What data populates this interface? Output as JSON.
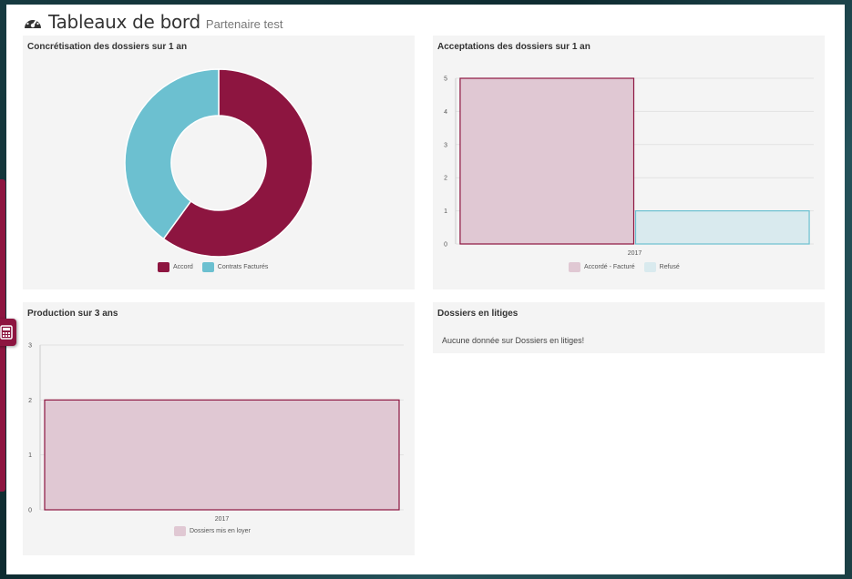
{
  "header": {
    "title": "Tableaux de bord",
    "subtitle": "Partenaire test"
  },
  "panels": {
    "concretisation": {
      "title": "Concrétisation des dossiers sur 1 an"
    },
    "acceptations": {
      "title": "Acceptations des dossiers sur 1 an"
    },
    "production": {
      "title": "Production sur 3 ans"
    },
    "litiges": {
      "title": "Dossiers en litiges",
      "message": "Aucune donnée sur Dossiers en litiges!"
    }
  },
  "colors": {
    "accent": "#8d1540",
    "teal": "#6cc0d0",
    "accent_light": "#e0c8d3",
    "teal_light": "#d9eaee"
  },
  "icons": {
    "header": "dashboard-gauge-icon",
    "side": "calculator-icon"
  },
  "chart_data": [
    {
      "type": "pie",
      "title": "Concrétisation des dossiers sur 1 an",
      "labels": [
        "Accord",
        "Contrats Facturés"
      ],
      "values": [
        60,
        40
      ],
      "colors": [
        "#8d1540",
        "#6cc0d0"
      ],
      "legend": "bottom"
    },
    {
      "type": "bar",
      "title": "Acceptations des dossiers sur 1 an",
      "categories": [
        "2017"
      ],
      "series": [
        {
          "name": "Accordé - Facturé",
          "values": [
            5
          ]
        },
        {
          "name": "Refusé",
          "values": [
            1
          ]
        }
      ],
      "ylim": [
        0,
        5
      ],
      "yticks": [
        "0",
        "1",
        "2",
        "3",
        "4",
        "5"
      ],
      "legend": "bottom"
    },
    {
      "type": "bar",
      "title": "Production sur 3 ans",
      "categories": [
        "2017"
      ],
      "series": [
        {
          "name": "Dossiers mis en loyer",
          "values": [
            2
          ]
        }
      ],
      "ylim": [
        0,
        3
      ],
      "yticks": [
        "0",
        "1",
        "2",
        "3"
      ],
      "legend": "bottom"
    }
  ]
}
